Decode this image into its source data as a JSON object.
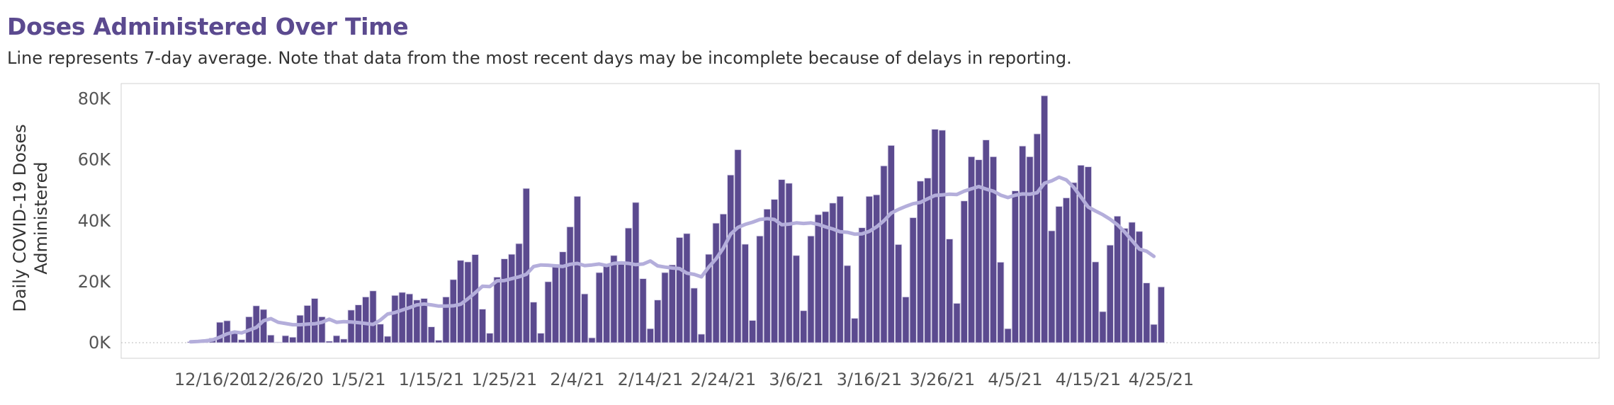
{
  "title": "Doses Administered Over Time",
  "subtitle": "Line represents 7-day average. Note that data from the most recent days may be incomplete because of delays in reporting.",
  "colors": {
    "bar": "#5b4a8f",
    "line": "#b4aedb",
    "title": "#5b4a8f",
    "axis": "#c8c8c8"
  },
  "chart_data": {
    "type": "bar",
    "ylabel": "Daily COVID-19 Doses Administered",
    "ylim": [
      0,
      85000
    ],
    "yticks": [
      {
        "value": 0,
        "label": "0K"
      },
      {
        "value": 20000,
        "label": "20K"
      },
      {
        "value": 40000,
        "label": "40K"
      },
      {
        "value": 60000,
        "label": "60K"
      },
      {
        "value": 80000,
        "label": "80K"
      }
    ],
    "xticks": [
      {
        "index": 3,
        "label": "12/16/20"
      },
      {
        "index": 13,
        "label": "12/26/20"
      },
      {
        "index": 23,
        "label": "1/5/21"
      },
      {
        "index": 33,
        "label": "1/15/21"
      },
      {
        "index": 43,
        "label": "1/25/21"
      },
      {
        "index": 53,
        "label": "2/4/21"
      },
      {
        "index": 63,
        "label": "2/14/21"
      },
      {
        "index": 73,
        "label": "2/24/21"
      },
      {
        "index": 83,
        "label": "3/6/21"
      },
      {
        "index": 93,
        "label": "3/16/21"
      },
      {
        "index": 103,
        "label": "3/26/21"
      },
      {
        "index": 113,
        "label": "4/5/21"
      },
      {
        "index": 123,
        "label": "4/15/21"
      },
      {
        "index": 133,
        "label": "4/25/21"
      }
    ],
    "series": [
      {
        "type": "bar",
        "values": [
          300,
          500,
          1000,
          1500,
          6700,
          7200,
          3600,
          1000,
          8500,
          12100,
          10900,
          2500,
          200,
          2300,
          1800,
          9000,
          12200,
          14500,
          8500,
          500,
          2300,
          1200,
          10700,
          12400,
          15000,
          17000,
          6100,
          2100,
          15500,
          16500,
          16000,
          14000,
          14500,
          5200,
          800,
          15000,
          20700,
          27000,
          26500,
          28900,
          11000,
          3100,
          21500,
          27500,
          29000,
          32500,
          50600,
          13300,
          3100,
          20000,
          25700,
          29800,
          38000,
          48000,
          16000,
          1600,
          23000,
          25700,
          28600,
          26500,
          37600,
          46000,
          21000,
          4600,
          14000,
          23000,
          25500,
          34500,
          35800,
          17900,
          2800,
          29000,
          39200,
          42200,
          55000,
          63300,
          32300,
          7300,
          35000,
          43800,
          47000,
          53500,
          52300,
          28600,
          10500,
          35000,
          42000,
          43000,
          45800,
          48000,
          25300,
          8000,
          37700,
          48000,
          48500,
          58000,
          64700,
          32200,
          15000,
          41000,
          53000,
          54000,
          70000,
          69700,
          34000,
          12900,
          46500,
          61000,
          60000,
          66500,
          61000,
          26400,
          4600,
          49800,
          64500,
          61000,
          68500,
          81000,
          36700,
          44700,
          47500,
          52500,
          58200,
          57700,
          26500,
          10200,
          32000,
          41500,
          37500,
          39500,
          36500,
          19600,
          6000,
          18300
        ],
        "show_from": 0
      },
      {
        "type": "line",
        "values": [
          300,
          400,
          600,
          900,
          1800,
          2900,
          3500,
          3200,
          4100,
          5000,
          7200,
          7900,
          6700,
          6300,
          5900,
          5900,
          6100,
          6200,
          6700,
          7700,
          6700,
          6900,
          6800,
          6600,
          6300,
          6000,
          7400,
          9400,
          9900,
          10700,
          11500,
          12400,
          12700,
          12400,
          12000,
          12000,
          12100,
          12600,
          14400,
          16400,
          18500,
          18400,
          20300,
          20400,
          21000,
          21600,
          22400,
          25000,
          25500,
          25400,
          25200,
          25000,
          25700,
          26000,
          25300,
          25500,
          25800,
          25300,
          26000,
          26200,
          26000,
          25600,
          25800,
          26800,
          25200,
          24800,
          24500,
          24300,
          22800,
          22400,
          21600,
          24800,
          27500,
          31000,
          35600,
          37800,
          38800,
          39500,
          40400,
          40700,
          40400,
          38700,
          38900,
          39300,
          39100,
          39300,
          38800,
          38000,
          37300,
          36400,
          36200,
          35600,
          35700,
          36500,
          38000,
          40000,
          42500,
          43700,
          44700,
          45600,
          46000,
          47200,
          48300,
          48500,
          48700,
          48600,
          49700,
          50500,
          51200,
          50400,
          49700,
          48400,
          47600,
          48400,
          48800,
          48700,
          49200,
          52300,
          53100,
          54300,
          53400,
          51000,
          47800,
          44500,
          43200,
          42000,
          40500,
          38700,
          36300,
          33500,
          30700,
          30000,
          28300
        ],
        "show_from": 0
      }
    ]
  }
}
